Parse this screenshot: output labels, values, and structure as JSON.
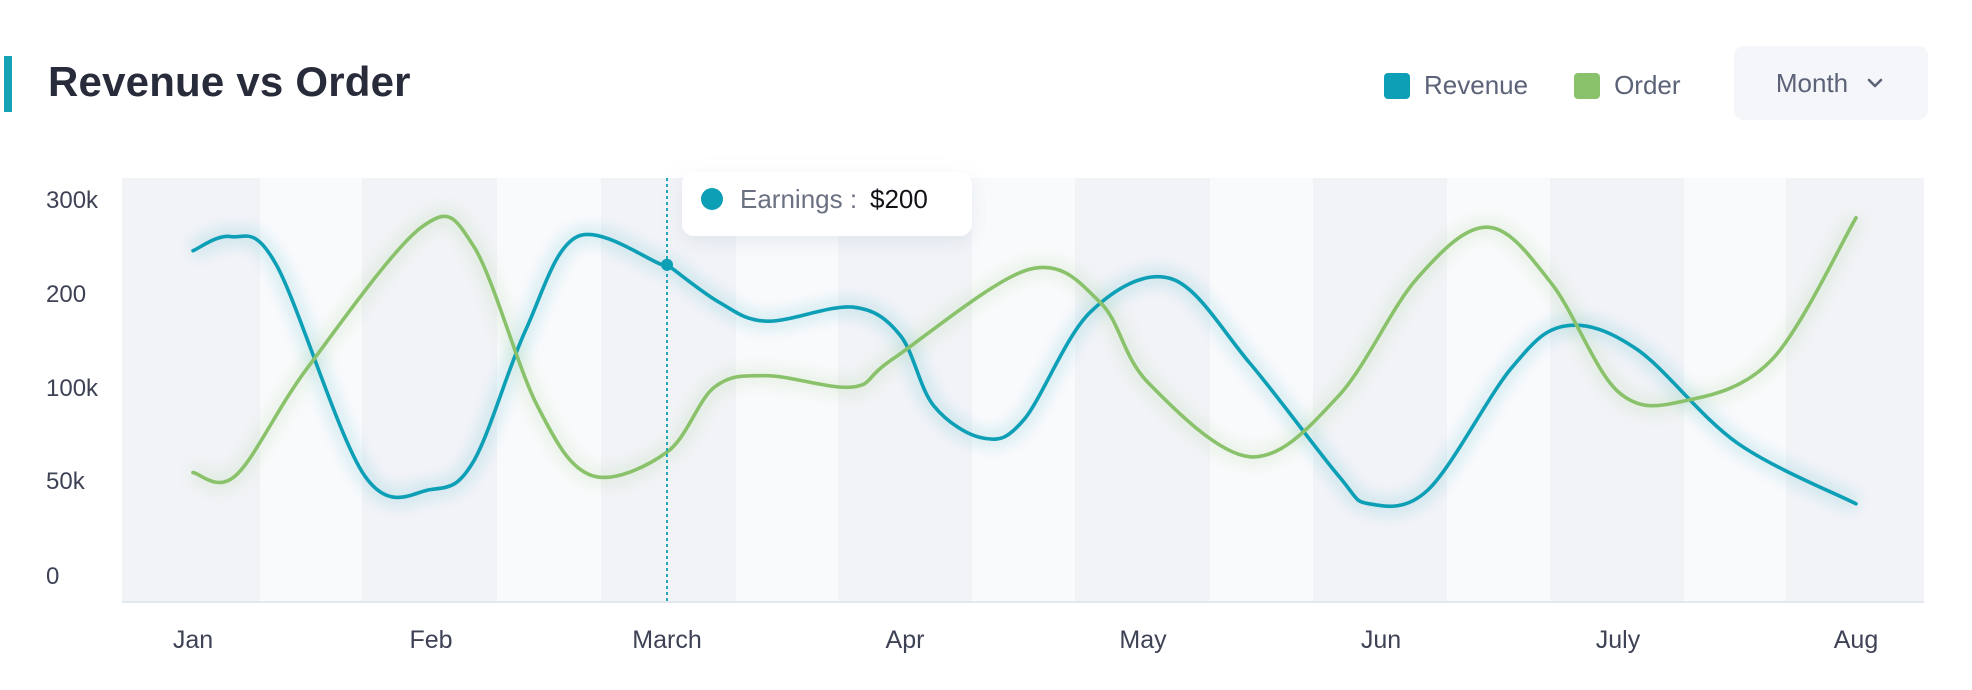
{
  "header": {
    "title": "Revenue vs Order",
    "accent_color": "#14a3b4"
  },
  "legend": [
    {
      "label": "Revenue",
      "color": "#0d9fb5"
    },
    {
      "label": "Order",
      "color": "#8ac26b"
    }
  ],
  "period_select": {
    "label": "Month",
    "icon": "chevron-down-icon"
  },
  "tooltip": {
    "label": "Earnings :",
    "value": "$200",
    "x_category": "March"
  },
  "chart_data": {
    "type": "line",
    "title": "Revenue vs Order",
    "xlabel": "",
    "ylabel": "",
    "y_tick_labels": [
      "0",
      "50k",
      "100k",
      "200",
      "300k"
    ],
    "x_tick_labels": [
      "Jan",
      "Feb",
      "March",
      "Apr",
      "May",
      "Jun",
      "July",
      "Aug"
    ],
    "legend_position": "top-right",
    "grid": "vertical bands",
    "series": [
      {
        "name": "Revenue",
        "color": "#0d9fb5",
        "points": [
          [
            0.0,
            3.45
          ],
          [
            0.16,
            3.6
          ],
          [
            0.35,
            3.3
          ],
          [
            0.72,
            1.05
          ],
          [
            1.0,
            0.9
          ],
          [
            1.18,
            1.2
          ],
          [
            1.4,
            2.6
          ],
          [
            1.62,
            3.6
          ],
          [
            1.98,
            3.3
          ],
          [
            2.0,
            3.3
          ],
          [
            2.22,
            2.9
          ],
          [
            2.42,
            2.7
          ],
          [
            2.78,
            2.85
          ],
          [
            2.98,
            2.55
          ],
          [
            3.12,
            1.8
          ],
          [
            3.33,
            1.45
          ],
          [
            3.5,
            1.65
          ],
          [
            3.78,
            2.8
          ],
          [
            4.12,
            3.15
          ],
          [
            4.45,
            2.25
          ],
          [
            4.82,
            1.05
          ],
          [
            4.95,
            0.75
          ],
          [
            5.2,
            0.9
          ],
          [
            5.55,
            2.2
          ],
          [
            5.78,
            2.65
          ],
          [
            6.08,
            2.4
          ],
          [
            6.5,
            1.4
          ],
          [
            7.0,
            0.75
          ]
        ]
      },
      {
        "name": "Order",
        "color": "#8ac26b",
        "points": [
          [
            0.0,
            1.08
          ],
          [
            0.18,
            1.05
          ],
          [
            0.48,
            2.2
          ],
          [
            0.96,
            3.7
          ],
          [
            1.18,
            3.5
          ],
          [
            1.45,
            1.8
          ],
          [
            1.68,
            1.05
          ],
          [
            2.0,
            1.3
          ],
          [
            2.2,
            2.0
          ],
          [
            2.42,
            2.12
          ],
          [
            2.78,
            2.0
          ],
          [
            2.95,
            2.3
          ],
          [
            3.52,
            3.25
          ],
          [
            3.82,
            2.9
          ],
          [
            4.02,
            2.05
          ],
          [
            4.45,
            1.25
          ],
          [
            4.82,
            1.9
          ],
          [
            5.15,
            3.15
          ],
          [
            5.45,
            3.7
          ],
          [
            5.72,
            3.1
          ],
          [
            6.0,
            1.95
          ],
          [
            6.28,
            1.85
          ],
          [
            6.65,
            2.3
          ],
          [
            7.0,
            3.8
          ]
        ]
      }
    ]
  }
}
